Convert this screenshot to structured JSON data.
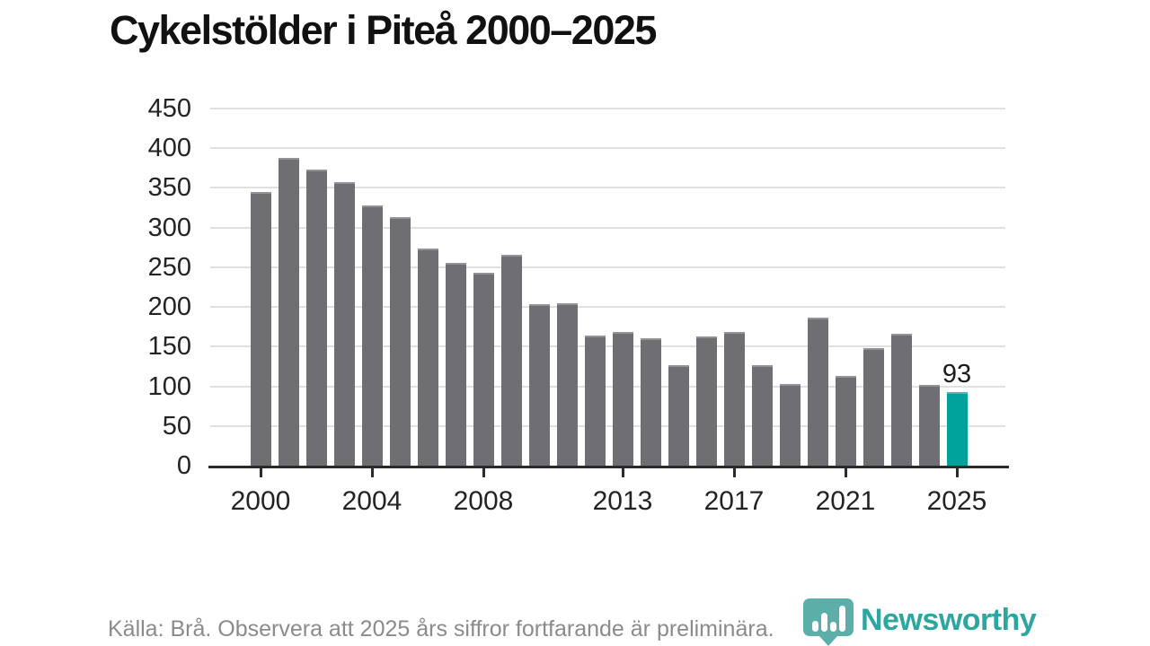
{
  "title": "Cykelstölder i Piteå 2000–2025",
  "source_note": "Källa: Brå. Observera att 2025 års siffror fortfarande är preliminära.",
  "branding": {
    "logo_text": "Newsworthy",
    "logo_icon": "bar-chart-pin-icon"
  },
  "colors": {
    "background": "#ffffff",
    "title": "#111111",
    "bar": "#6f6e73",
    "highlight": "#00a39b",
    "grid": "#e0e0e0",
    "axis": "#2b2b2d",
    "tick_label": "#222326",
    "source_text": "#8b8b8b",
    "logo": "#2ba7a0"
  },
  "chart_data": {
    "type": "bar",
    "title": "Cykelstölder i Piteå 2000–2025",
    "xlabel": "",
    "ylabel": "",
    "x": [
      2000,
      2001,
      2002,
      2003,
      2004,
      2005,
      2006,
      2007,
      2008,
      2009,
      2010,
      2011,
      2012,
      2013,
      2014,
      2015,
      2016,
      2017,
      2018,
      2019,
      2020,
      2021,
      2022,
      2023,
      2024,
      2025
    ],
    "values": [
      345,
      388,
      373,
      357,
      328,
      313,
      274,
      255,
      243,
      266,
      203,
      205,
      164,
      168,
      161,
      127,
      163,
      169,
      127,
      103,
      186,
      113,
      148,
      166,
      102,
      93
    ],
    "highlight_year": 2025,
    "highlight_label": "93",
    "x_tick_labels": [
      "2000",
      "2004",
      "2008",
      "2013",
      "2017",
      "2021",
      "2025"
    ],
    "y_ticks": [
      0,
      50,
      100,
      150,
      200,
      250,
      300,
      350,
      400,
      450
    ],
    "ylim": [
      0,
      450
    ],
    "grid": "horizontal-only",
    "legend": "none"
  }
}
